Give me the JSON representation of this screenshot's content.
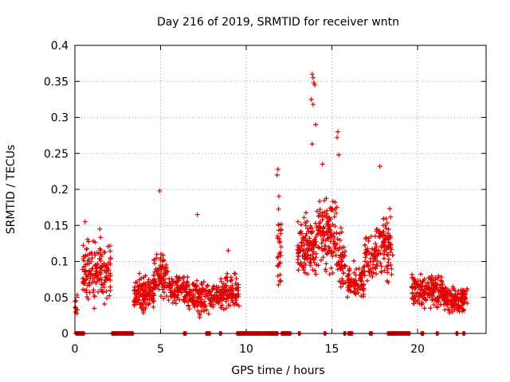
{
  "chart_data": {
    "type": "scatter",
    "title": "Day 216 of 2019, SRMTID for receiver wntn",
    "xlabel": "GPS time / hours",
    "ylabel": "SRMTID / TECUs",
    "xlim": [
      0,
      24
    ],
    "ylim": [
      0,
      0.4
    ],
    "xticks": [
      0,
      5,
      10,
      15,
      20
    ],
    "yticks": [
      0,
      0.05,
      0.1,
      0.15,
      0.2,
      0.25,
      0.3,
      0.35,
      0.4
    ],
    "ytick_labels": [
      "0",
      "0.05",
      "0.1",
      "0.15",
      "0.2",
      "0.25",
      "0.3",
      "0.35",
      "0.4"
    ],
    "grid": true,
    "marker": "+",
    "color": "#e00000",
    "series": [
      {
        "name": "SRMTID",
        "clusters": [
          {
            "x_start": 0.0,
            "x_end": 0.15,
            "y_center": 0.04,
            "y_spread": 0.015,
            "count": 10
          },
          {
            "x_start": 0.45,
            "x_end": 2.1,
            "y_center": 0.085,
            "y_spread": 0.035,
            "count": 160
          },
          {
            "x_start": 3.45,
            "x_end": 4.65,
            "y_center": 0.055,
            "y_spread": 0.022,
            "count": 130
          },
          {
            "x_start": 4.6,
            "x_end": 5.45,
            "y_center": 0.08,
            "y_spread": 0.025,
            "count": 80
          },
          {
            "x_start": 5.45,
            "x_end": 6.6,
            "y_center": 0.062,
            "y_spread": 0.018,
            "count": 100
          },
          {
            "x_start": 6.6,
            "x_end": 8.6,
            "y_center": 0.052,
            "y_spread": 0.02,
            "count": 170
          },
          {
            "x_start": 8.6,
            "x_end": 9.6,
            "y_center": 0.058,
            "y_spread": 0.02,
            "count": 80
          },
          {
            "x_start": 11.8,
            "x_end": 12.05,
            "y_center": 0.12,
            "y_spread": 0.05,
            "count": 30
          },
          {
            "x_start": 13.0,
            "x_end": 14.1,
            "y_center": 0.12,
            "y_spread": 0.04,
            "count": 120
          },
          {
            "x_start": 14.1,
            "x_end": 15.3,
            "y_center": 0.14,
            "y_spread": 0.045,
            "count": 130
          },
          {
            "x_start": 15.3,
            "x_end": 15.8,
            "y_center": 0.1,
            "y_spread": 0.04,
            "count": 50
          },
          {
            "x_start": 15.9,
            "x_end": 16.9,
            "y_center": 0.072,
            "y_spread": 0.02,
            "count": 90
          },
          {
            "x_start": 16.9,
            "x_end": 17.6,
            "y_center": 0.105,
            "y_spread": 0.03,
            "count": 60
          },
          {
            "x_start": 17.6,
            "x_end": 18.55,
            "y_center": 0.12,
            "y_spread": 0.04,
            "count": 90
          },
          {
            "x_start": 19.65,
            "x_end": 21.5,
            "y_center": 0.06,
            "y_spread": 0.02,
            "count": 170
          },
          {
            "x_start": 21.5,
            "x_end": 22.9,
            "y_center": 0.048,
            "y_spread": 0.015,
            "count": 130
          }
        ],
        "zero_runs": [
          [
            0.05,
            0.55
          ],
          [
            2.15,
            3.4
          ],
          [
            6.35,
            6.5
          ],
          [
            7.65,
            7.9
          ],
          [
            8.45,
            8.55
          ],
          [
            9.45,
            11.85
          ],
          [
            12.05,
            12.6
          ],
          [
            13.05,
            13.15
          ],
          [
            14.55,
            14.65
          ],
          [
            15.7,
            15.8
          ],
          [
            15.95,
            16.2
          ],
          [
            17.2,
            17.35
          ],
          [
            18.25,
            19.55
          ],
          [
            20.2,
            20.35
          ],
          [
            21.1,
            21.2
          ],
          [
            22.25,
            22.35
          ],
          [
            22.65,
            22.75
          ]
        ],
        "notable_points": [
          {
            "x": 13.85,
            "y": 0.36
          },
          {
            "x": 13.9,
            "y": 0.355
          },
          {
            "x": 13.95,
            "y": 0.348
          },
          {
            "x": 14.0,
            "y": 0.345
          },
          {
            "x": 13.8,
            "y": 0.325
          },
          {
            "x": 13.9,
            "y": 0.318
          },
          {
            "x": 14.05,
            "y": 0.29
          },
          {
            "x": 13.85,
            "y": 0.263
          },
          {
            "x": 15.35,
            "y": 0.28
          },
          {
            "x": 15.3,
            "y": 0.272
          },
          {
            "x": 15.4,
            "y": 0.248
          },
          {
            "x": 11.85,
            "y": 0.228
          },
          {
            "x": 11.8,
            "y": 0.22
          },
          {
            "x": 4.95,
            "y": 0.198
          },
          {
            "x": 7.15,
            "y": 0.165
          },
          {
            "x": 17.8,
            "y": 0.232
          },
          {
            "x": 14.45,
            "y": 0.235
          },
          {
            "x": 1.45,
            "y": 0.145
          },
          {
            "x": 0.6,
            "y": 0.155
          },
          {
            "x": 8.95,
            "y": 0.115
          }
        ]
      }
    ]
  }
}
